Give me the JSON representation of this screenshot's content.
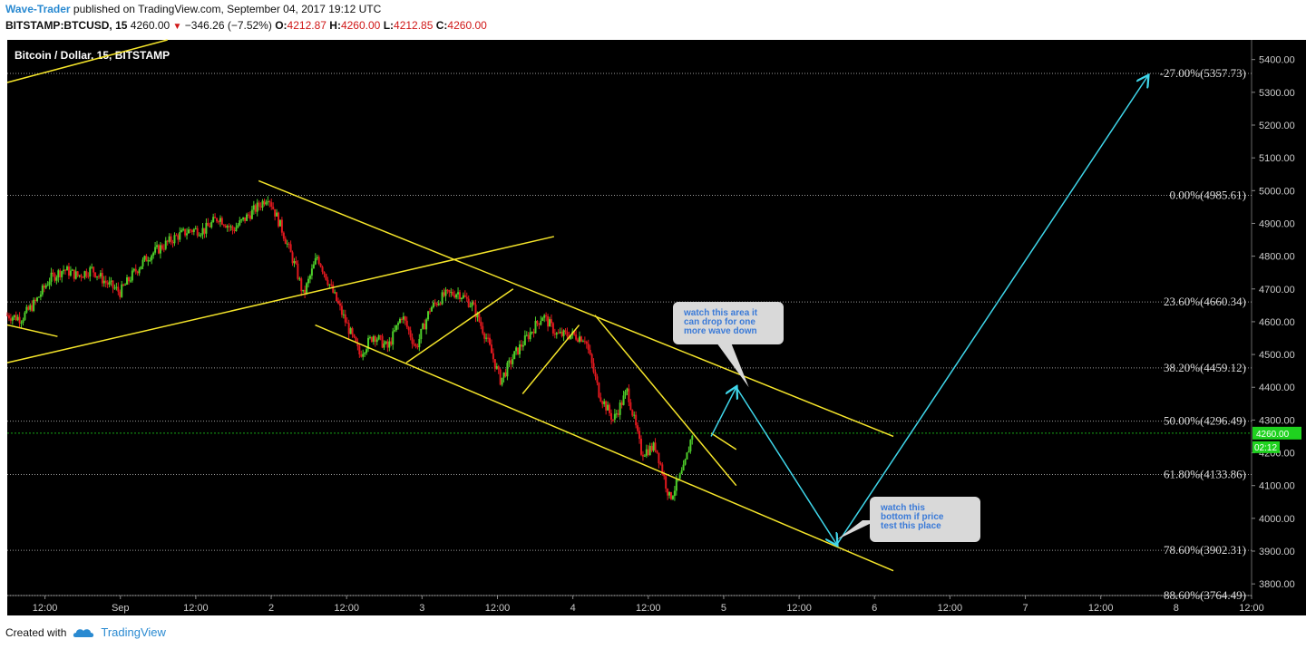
{
  "header": {
    "author": "Wave-Trader",
    "published_text": " published on TradingView.com, September 04, 2017 19:12 UTC",
    "symbol_line": "BITSTAMP:BTCUSD, 15",
    "last": "4260.00",
    "change": "−346.26 (−7.52%)",
    "o_label": "O:",
    "o_val": "4212.87",
    "h_label": "H:",
    "h_val": "4260.00",
    "l_label": "L:",
    "l_val": "4212.85",
    "c_label": "C:",
    "c_val": "4260.00"
  },
  "footer": {
    "created_with": "Created with",
    "brand": "TradingView"
  },
  "colors": {
    "bg": "#000000",
    "up": "#4ecf2a",
    "down": "#e0181e",
    "trend": "#f5e52a",
    "arrow": "#3fd6ea",
    "fib": "#cfcfcf",
    "axis_text": "#cccccc",
    "price_badge": "#1fd21f"
  },
  "chart_data": {
    "type": "candlestick",
    "title": "Bitcoin / Dollar, 15, BITSTAMP",
    "ylim": [
      3764.49,
      5460
    ],
    "y_ticks": [
      3800,
      3900,
      4000,
      4100,
      4200,
      4300,
      4400,
      4500,
      4600,
      4700,
      4800,
      4900,
      5000,
      5100,
      5200,
      5300,
      5400
    ],
    "x_ticks": [
      "12:00",
      "Sep",
      "12:00",
      "2",
      "12:00",
      "3",
      "12:00",
      "4",
      "12:00",
      "5",
      "12:00",
      "6",
      "12:00",
      "7",
      "12:00",
      "8",
      "12:00"
    ],
    "x_range": [
      "Aug 31 06:00",
      "Sep 8 12:00"
    ],
    "last_price": "4260.00",
    "countdown": "02:12",
    "fib_levels": [
      {
        "label": "-27.00%(5357.73)",
        "value": 5357.73
      },
      {
        "label": "0.00%(4985.61)",
        "value": 4985.61
      },
      {
        "label": "23.60%(4660.34)",
        "value": 4660.34
      },
      {
        "label": "38.20%(4459.12)",
        "value": 4459.12
      },
      {
        "label": "50.00%(4296.49)",
        "value": 4296.49
      },
      {
        "label": "61.80%(4133.86)",
        "value": 4133.86
      },
      {
        "label": "78.60%(3902.31)",
        "value": 3902.31
      },
      {
        "label": "88.60%(3764.49)",
        "value": 3764.49
      }
    ],
    "price_path": [
      [
        0,
        4620
      ],
      [
        2,
        4610
      ],
      [
        4,
        4660
      ],
      [
        6,
        4730
      ],
      [
        8,
        4760
      ],
      [
        10,
        4740
      ],
      [
        12,
        4760
      ],
      [
        14,
        4720
      ],
      [
        16,
        4690
      ],
      [
        18,
        4750
      ],
      [
        20,
        4800
      ],
      [
        22,
        4830
      ],
      [
        24,
        4860
      ],
      [
        26,
        4880
      ],
      [
        28,
        4880
      ],
      [
        30,
        4920
      ],
      [
        32,
        4880
      ],
      [
        34,
        4920
      ],
      [
        36,
        4960
      ],
      [
        37,
        4985
      ],
      [
        39,
        4880
      ],
      [
        41,
        4760
      ],
      [
        42,
        4680
      ],
      [
        44,
        4800
      ],
      [
        46,
        4700
      ],
      [
        48,
        4600
      ],
      [
        50,
        4500
      ],
      [
        52,
        4560
      ],
      [
        54,
        4520
      ],
      [
        56,
        4620
      ],
      [
        58,
        4520
      ],
      [
        60,
        4640
      ],
      [
        62,
        4680
      ],
      [
        64,
        4690
      ],
      [
        66,
        4650
      ],
      [
        68,
        4550
      ],
      [
        70,
        4420
      ],
      [
        72,
        4500
      ],
      [
        74,
        4560
      ],
      [
        76,
        4620
      ],
      [
        78,
        4560
      ],
      [
        80,
        4560
      ],
      [
        82,
        4550
      ],
      [
        84,
        4380
      ],
      [
        86,
        4300
      ],
      [
        88,
        4390
      ],
      [
        90,
        4200
      ],
      [
        92,
        4220
      ],
      [
        94,
        4060
      ],
      [
        96,
        4150
      ],
      [
        97.2,
        4260
      ]
    ],
    "trendlines": [
      {
        "name": "upper-left-line",
        "points": [
          [
            "Aug 31 06:00",
            5330
          ],
          [
            "Sep 1 07:30",
            5460
          ]
        ]
      },
      {
        "name": "small-left-line",
        "points": [
          [
            "Aug 31 06:00",
            4590
          ],
          [
            "Aug 31 14:00",
            4555
          ]
        ]
      },
      {
        "name": "rising-line",
        "points": [
          [
            "Aug 31 06:00",
            4475
          ],
          [
            "Sep 3 21:00",
            4860
          ]
        ]
      },
      {
        "name": "channel-upper",
        "points": [
          [
            "Sep 1 22:00",
            5030
          ],
          [
            "Sep 6 03:00",
            4250
          ]
        ]
      },
      {
        "name": "channel-lower",
        "points": [
          [
            "Sep 2 07:00",
            4590
          ],
          [
            "Sep 6 03:00",
            3840
          ]
        ]
      },
      {
        "name": "flag-1",
        "points": [
          [
            "Sep 2 21:30",
            4475
          ],
          [
            "Sep 3 14:30",
            4700
          ]
        ]
      },
      {
        "name": "flag-2",
        "points": [
          [
            "Sep 3 16:00",
            4380
          ],
          [
            "Sep 4 01:00",
            4590
          ]
        ]
      },
      {
        "name": "wedge-upper",
        "points": [
          [
            "Sep 4 03:30",
            4620
          ],
          [
            "Sep 5 02:00",
            4100
          ]
        ]
      },
      {
        "name": "wedge-lower",
        "points": [
          [
            "Sep 4 22:00",
            4260
          ],
          [
            "Sep 5 02:00",
            4210
          ]
        ]
      }
    ],
    "projection": [
      [
        "Sep 4 22:00",
        4250
      ],
      [
        "Sep 5 02:00",
        4400
      ],
      [
        "Sep 5 18:00",
        3920
      ],
      [
        "Sep 7 19:30",
        5350
      ]
    ],
    "annotations": [
      {
        "text": [
          "watch this area it",
          "can drop for one",
          "more wave down"
        ],
        "anchor": [
          "Sep 5 04:00",
          4400
        ]
      },
      {
        "text": [
          "watch this",
          "bottom if price",
          "test this place"
        ],
        "anchor": [
          "Sep 5 18:00",
          3935
        ]
      }
    ]
  }
}
